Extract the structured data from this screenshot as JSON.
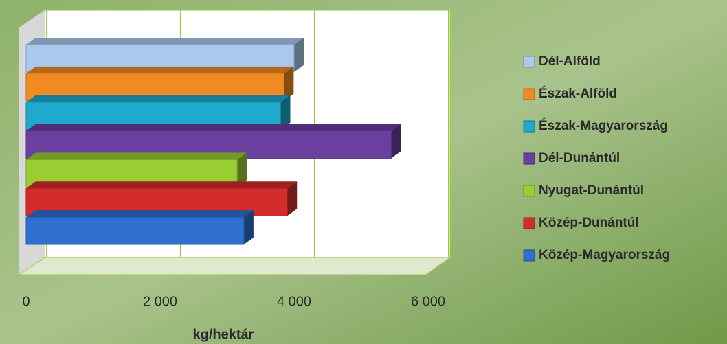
{
  "chart_data": {
    "type": "bar",
    "orientation": "horizontal",
    "xlabel": "kg/hektár",
    "categories": [
      "Dél-Alföld",
      "Észak-Alföld",
      "Észak-Magyarország",
      "Dél-Dunántúl",
      "Nyugat-Dunántúl",
      "Közép-Dunántúl",
      "Közép-Magyarország"
    ],
    "values": [
      4000,
      3850,
      3800,
      5450,
      3150,
      3900,
      3250
    ],
    "colors": [
      "#a9c9ee",
      "#f28a22",
      "#1fa9cc",
      "#6a3fa0",
      "#9acd32",
      "#d42b2b",
      "#2f6fd0"
    ],
    "xlim": [
      0,
      6000
    ],
    "xticks": [
      {
        "value": 0,
        "label": "0"
      },
      {
        "value": 2000,
        "label": "2 000"
      },
      {
        "value": 4000,
        "label": "4 000"
      },
      {
        "value": 6000,
        "label": "6 000"
      }
    ],
    "grid": true
  }
}
